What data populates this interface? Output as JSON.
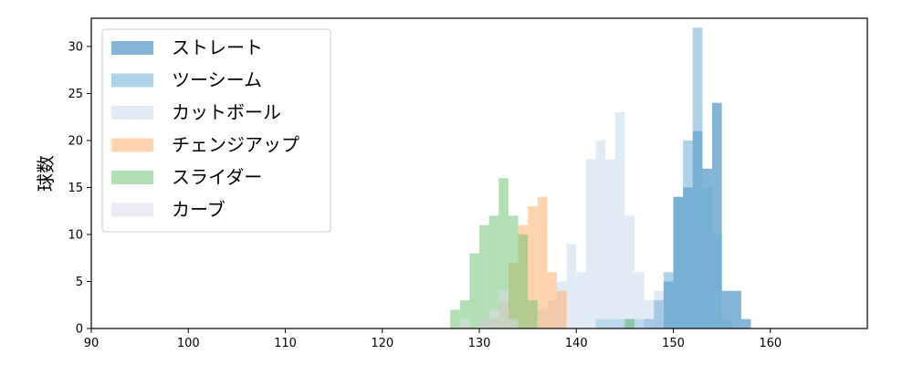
{
  "chart_data": {
    "type": "histogram",
    "ylabel": "球数",
    "xlabel": "",
    "xlim": [
      90,
      170
    ],
    "ylim": [
      0,
      33
    ],
    "xticks": [
      90,
      100,
      110,
      120,
      130,
      140,
      150,
      160
    ],
    "yticks": [
      0,
      5,
      10,
      15,
      20,
      25,
      30
    ],
    "bin_width": 1,
    "legend_position": "upper-left",
    "grid": false,
    "alpha": 0.55,
    "series": [
      {
        "name": "ストレート",
        "color": "#1f77b4",
        "bins": [
          [
            145,
            1
          ],
          [
            147,
            1
          ],
          [
            148,
            3
          ],
          [
            149,
            5
          ],
          [
            150,
            14
          ],
          [
            151,
            15
          ],
          [
            152,
            21
          ],
          [
            153,
            17
          ],
          [
            154,
            24
          ],
          [
            155,
            4
          ],
          [
            156,
            4
          ],
          [
            157,
            1
          ]
        ]
      },
      {
        "name": "ツーシーム",
        "color": "#6baed6",
        "bins": [
          [
            142,
            1
          ],
          [
            143,
            1
          ],
          [
            144,
            1
          ],
          [
            146,
            1
          ],
          [
            148,
            1
          ],
          [
            149,
            6
          ],
          [
            150,
            14
          ],
          [
            151,
            20
          ],
          [
            152,
            32
          ],
          [
            153,
            15
          ],
          [
            154,
            10
          ],
          [
            155,
            1
          ]
        ]
      },
      {
        "name": "カットボール",
        "color": "#c6dbef",
        "bins": [
          [
            130,
            1
          ],
          [
            133,
            1
          ],
          [
            136,
            2
          ],
          [
            137,
            3
          ],
          [
            138,
            5
          ],
          [
            139,
            9
          ],
          [
            140,
            6
          ],
          [
            141,
            18
          ],
          [
            142,
            20
          ],
          [
            143,
            18
          ],
          [
            144,
            23
          ],
          [
            145,
            12
          ],
          [
            146,
            6
          ],
          [
            147,
            3
          ],
          [
            148,
            4
          ]
        ]
      },
      {
        "name": "チェンジアップ",
        "color": "#fdae6b",
        "bins": [
          [
            130,
            1
          ],
          [
            131,
            1
          ],
          [
            132,
            3
          ],
          [
            133,
            7
          ],
          [
            134,
            11
          ],
          [
            135,
            13
          ],
          [
            136,
            14
          ],
          [
            137,
            6
          ],
          [
            138,
            4
          ]
        ]
      },
      {
        "name": "スライダー",
        "color": "#74c476",
        "bins": [
          [
            127,
            2
          ],
          [
            128,
            3
          ],
          [
            129,
            8
          ],
          [
            130,
            11
          ],
          [
            131,
            12
          ],
          [
            132,
            16
          ],
          [
            133,
            12
          ],
          [
            134,
            10
          ],
          [
            135,
            3
          ],
          [
            145,
            1
          ]
        ]
      },
      {
        "name": "カーブ",
        "color": "#dadaeb",
        "bins": [
          [
            128,
            1
          ],
          [
            130,
            1
          ],
          [
            131,
            2
          ],
          [
            132,
            4
          ],
          [
            133,
            1
          ]
        ]
      }
    ]
  }
}
